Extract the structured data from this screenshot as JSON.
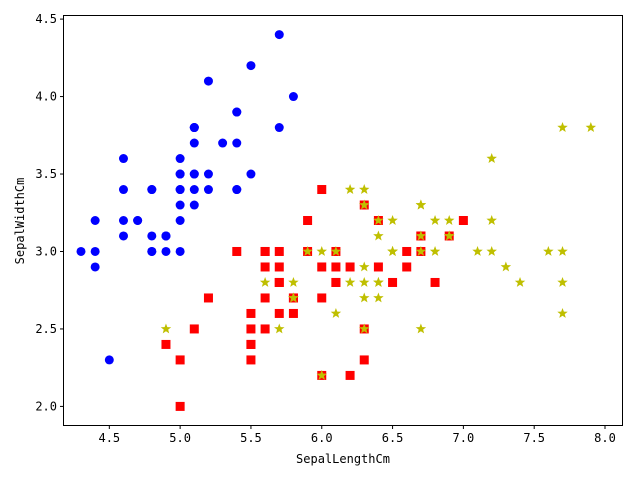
{
  "chart_data": {
    "type": "scatter",
    "title": "",
    "xlabel": "SepalLengthCm",
    "ylabel": "SepalWidthCm",
    "xlim": [
      4.18,
      8.12
    ],
    "ylim": [
      1.88,
      4.52
    ],
    "xticks": [
      "4.5",
      "5.0",
      "5.5",
      "6.0",
      "6.5",
      "7.0",
      "7.5",
      "8.0"
    ],
    "yticks": [
      "2.0",
      "2.5",
      "3.0",
      "3.5",
      "4.0",
      "4.5"
    ],
    "grid": false,
    "series": [
      {
        "marker": "circle",
        "color": "#0000ff",
        "points": [
          [
            5.1,
            3.5
          ],
          [
            4.9,
            3.0
          ],
          [
            4.7,
            3.2
          ],
          [
            4.6,
            3.1
          ],
          [
            5.0,
            3.6
          ],
          [
            5.4,
            3.9
          ],
          [
            4.6,
            3.4
          ],
          [
            5.0,
            3.4
          ],
          [
            4.4,
            2.9
          ],
          [
            4.9,
            3.1
          ],
          [
            5.4,
            3.7
          ],
          [
            4.8,
            3.4
          ],
          [
            4.8,
            3.0
          ],
          [
            4.3,
            3.0
          ],
          [
            5.8,
            4.0
          ],
          [
            5.7,
            4.4
          ],
          [
            5.4,
            3.9
          ],
          [
            5.1,
            3.5
          ],
          [
            5.7,
            3.8
          ],
          [
            5.1,
            3.8
          ],
          [
            5.4,
            3.4
          ],
          [
            5.1,
            3.7
          ],
          [
            4.6,
            3.6
          ],
          [
            5.1,
            3.3
          ],
          [
            4.8,
            3.4
          ],
          [
            5.0,
            3.0
          ],
          [
            5.0,
            3.4
          ],
          [
            5.2,
            3.5
          ],
          [
            5.2,
            3.4
          ],
          [
            4.7,
            3.2
          ],
          [
            4.8,
            3.1
          ],
          [
            5.4,
            3.4
          ],
          [
            5.2,
            4.1
          ],
          [
            5.5,
            4.2
          ],
          [
            4.9,
            3.1
          ],
          [
            5.0,
            3.2
          ],
          [
            5.5,
            3.5
          ],
          [
            4.9,
            3.1
          ],
          [
            4.4,
            3.0
          ],
          [
            5.1,
            3.4
          ],
          [
            5.0,
            3.5
          ],
          [
            4.5,
            2.3
          ],
          [
            4.4,
            3.2
          ],
          [
            5.0,
            3.5
          ],
          [
            5.1,
            3.8
          ],
          [
            4.8,
            3.0
          ],
          [
            5.1,
            3.8
          ],
          [
            4.6,
            3.2
          ],
          [
            5.3,
            3.7
          ],
          [
            5.0,
            3.3
          ]
        ]
      },
      {
        "marker": "square",
        "color": "#ff0000",
        "points": [
          [
            7.0,
            3.2
          ],
          [
            6.4,
            3.2
          ],
          [
            6.9,
            3.1
          ],
          [
            5.5,
            2.3
          ],
          [
            6.5,
            2.8
          ],
          [
            5.7,
            2.8
          ],
          [
            6.3,
            3.3
          ],
          [
            4.9,
            2.4
          ],
          [
            6.6,
            2.9
          ],
          [
            5.2,
            2.7
          ],
          [
            5.0,
            2.0
          ],
          [
            5.9,
            3.0
          ],
          [
            6.0,
            2.2
          ],
          [
            6.1,
            2.9
          ],
          [
            5.6,
            2.9
          ],
          [
            6.7,
            3.1
          ],
          [
            5.6,
            3.0
          ],
          [
            5.8,
            2.7
          ],
          [
            6.2,
            2.2
          ],
          [
            5.6,
            2.5
          ],
          [
            5.9,
            3.2
          ],
          [
            6.1,
            2.8
          ],
          [
            6.3,
            2.5
          ],
          [
            6.1,
            2.8
          ],
          [
            6.4,
            2.9
          ],
          [
            6.6,
            3.0
          ],
          [
            6.8,
            2.8
          ],
          [
            6.7,
            3.0
          ],
          [
            6.0,
            2.9
          ],
          [
            5.7,
            2.6
          ],
          [
            5.5,
            2.4
          ],
          [
            5.5,
            2.4
          ],
          [
            5.8,
            2.7
          ],
          [
            6.0,
            2.7
          ],
          [
            5.4,
            3.0
          ],
          [
            6.0,
            3.4
          ],
          [
            6.7,
            3.1
          ],
          [
            6.3,
            2.3
          ],
          [
            5.6,
            3.0
          ],
          [
            5.5,
            2.5
          ],
          [
            5.5,
            2.6
          ],
          [
            6.1,
            3.0
          ],
          [
            5.8,
            2.6
          ],
          [
            5.0,
            2.3
          ],
          [
            5.6,
            2.7
          ],
          [
            5.7,
            3.0
          ],
          [
            5.7,
            2.9
          ],
          [
            6.2,
            2.9
          ],
          [
            5.1,
            2.5
          ],
          [
            5.7,
            2.8
          ]
        ]
      },
      {
        "marker": "star",
        "color": "#bfbf00",
        "points": [
          [
            6.3,
            3.3
          ],
          [
            5.8,
            2.7
          ],
          [
            7.1,
            3.0
          ],
          [
            6.3,
            2.9
          ],
          [
            6.5,
            3.0
          ],
          [
            7.6,
            3.0
          ],
          [
            4.9,
            2.5
          ],
          [
            7.3,
            2.9
          ],
          [
            6.7,
            2.5
          ],
          [
            7.2,
            3.6
          ],
          [
            6.5,
            3.2
          ],
          [
            6.4,
            2.7
          ],
          [
            6.8,
            3.0
          ],
          [
            5.7,
            2.5
          ],
          [
            5.8,
            2.8
          ],
          [
            6.4,
            3.2
          ],
          [
            6.5,
            3.0
          ],
          [
            7.7,
            3.8
          ],
          [
            7.7,
            2.6
          ],
          [
            6.0,
            2.2
          ],
          [
            6.9,
            3.2
          ],
          [
            5.6,
            2.8
          ],
          [
            7.7,
            2.8
          ],
          [
            6.3,
            2.7
          ],
          [
            6.7,
            3.3
          ],
          [
            7.2,
            3.2
          ],
          [
            6.2,
            2.8
          ],
          [
            6.1,
            3.0
          ],
          [
            6.4,
            2.8
          ],
          [
            7.2,
            3.0
          ],
          [
            7.4,
            2.8
          ],
          [
            7.9,
            3.8
          ],
          [
            6.4,
            2.8
          ],
          [
            6.3,
            2.8
          ],
          [
            6.1,
            2.6
          ],
          [
            7.7,
            3.0
          ],
          [
            6.3,
            3.4
          ],
          [
            6.4,
            3.1
          ],
          [
            6.0,
            3.0
          ],
          [
            6.9,
            3.1
          ],
          [
            6.7,
            3.1
          ],
          [
            6.9,
            3.1
          ],
          [
            5.8,
            2.7
          ],
          [
            6.8,
            3.2
          ],
          [
            6.7,
            3.3
          ],
          [
            6.7,
            3.0
          ],
          [
            6.3,
            2.5
          ],
          [
            6.5,
            3.0
          ],
          [
            6.2,
            3.4
          ],
          [
            5.9,
            3.0
          ]
        ]
      }
    ]
  }
}
